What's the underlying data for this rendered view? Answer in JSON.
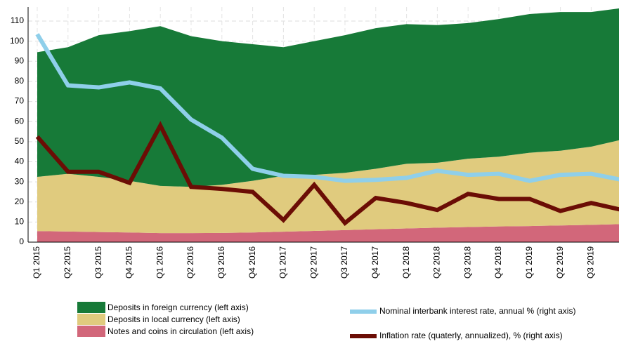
{
  "chart_data": {
    "type": "area",
    "stacked": true,
    "categories": [
      "Q1 2015",
      "Q2 2015",
      "Q3 2015",
      "Q4 2015",
      "Q1 2016",
      "Q2 2016",
      "Q3 2016",
      "Q4 2016",
      "Q1 2017",
      "Q2 2017",
      "Q3 2017",
      "Q4 2017",
      "Q1 2018",
      "Q2 2018",
      "Q3 2018",
      "Q4 2018",
      "Q1 2019",
      "Q2 2019",
      "Q3 2019",
      null
    ],
    "ylim": [
      0,
      117
    ],
    "yticks": [
      0,
      10,
      20,
      30,
      40,
      50,
      60,
      70,
      80,
      90,
      100,
      110
    ],
    "grid": true,
    "series": [
      {
        "name": "Deposits in foreign currency (left axis)",
        "color": "#177a38",
        "type": "area",
        "values": [
          62,
          63,
          70.5,
          74.5,
          79.5,
          75,
          71.5,
          68,
          64,
          66.5,
          68.5,
          70,
          69.5,
          68.5,
          67.5,
          68.5,
          69,
          69,
          67,
          65.5
        ]
      },
      {
        "name": "Deposits in local currency (left axis)",
        "color": "#e0cb7e",
        "type": "area",
        "values": [
          27,
          28.7,
          27.5,
          25.7,
          23.5,
          23,
          23.9,
          25.7,
          27.8,
          27.9,
          28.5,
          30.1,
          32.2,
          32.3,
          34,
          34.7,
          36.5,
          37.2,
          38.9,
          42
        ]
      },
      {
        "name": "Notes and coins in circulation (left axis)",
        "color": "#d2677a",
        "type": "area",
        "values": [
          5.5,
          5.3,
          5,
          4.8,
          4.5,
          4.5,
          4.6,
          4.8,
          5.2,
          5.6,
          6,
          6.4,
          6.8,
          7.2,
          7.5,
          7.8,
          8,
          8.3,
          8.6,
          9
        ]
      },
      {
        "name": "Nominal interbank interest rate, annual % (right axis)",
        "color": "#8fcfea",
        "type": "line",
        "values": [
          103.5,
          78,
          77,
          79.5,
          76.5,
          61,
          52,
          36.5,
          33,
          32.5,
          30.5,
          31,
          32,
          35.5,
          33.5,
          34,
          30.5,
          33.5,
          34,
          31
        ]
      },
      {
        "name": "Inflation rate (quaterly, annualized), % (right axis)",
        "color": "#6b0d05",
        "type": "line",
        "values": [
          52.5,
          35,
          35,
          29.5,
          58,
          27.5,
          26.5,
          25,
          11,
          28.5,
          9.5,
          22,
          19.5,
          16,
          24,
          21.5,
          21.5,
          15.5,
          19.5,
          16
        ]
      }
    ]
  }
}
